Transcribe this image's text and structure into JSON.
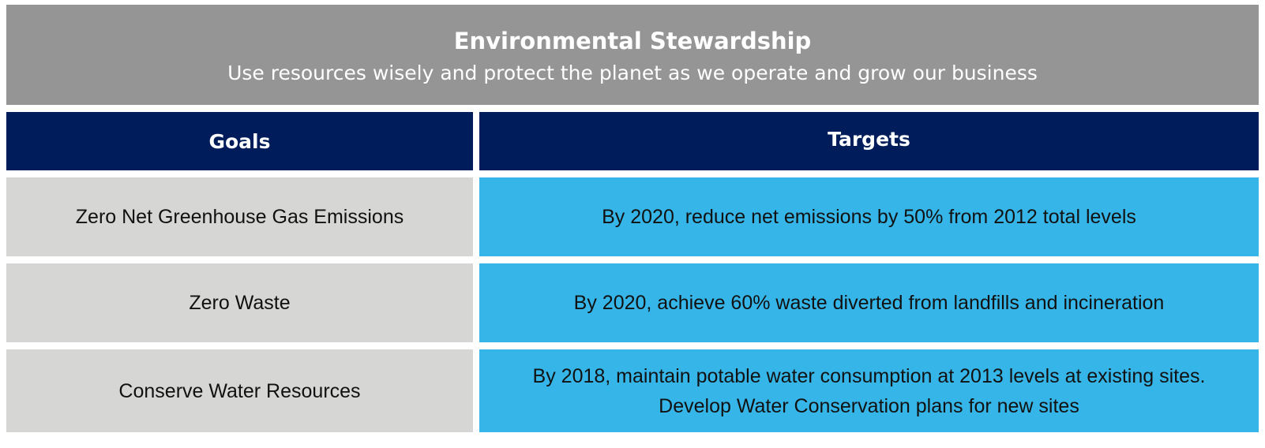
{
  "banner": {
    "title": "Environmental Stewardship",
    "subtitle": "Use resources wisely and protect the planet as we operate and grow our business"
  },
  "table": {
    "headers": {
      "goals": "Goals",
      "targets": "Targets"
    },
    "rows": [
      {
        "goal": "Zero Net Greenhouse Gas Emissions",
        "target": "By 2020, reduce net emissions by 50% from 2012 total levels"
      },
      {
        "goal": "Zero Waste",
        "target": "By 2020, achieve 60% waste diverted from landfills and incineration"
      },
      {
        "goal": "Conserve Water Resources",
        "target": "By 2018, maintain potable water consumption at 2013 levels at existing sites. Develop Water Conservation plans for new sites"
      }
    ]
  },
  "colors": {
    "banner": "#959596",
    "header": "#001c5b",
    "goal_cell": "#d6d6d5",
    "target_cell": "#36b6e8"
  }
}
